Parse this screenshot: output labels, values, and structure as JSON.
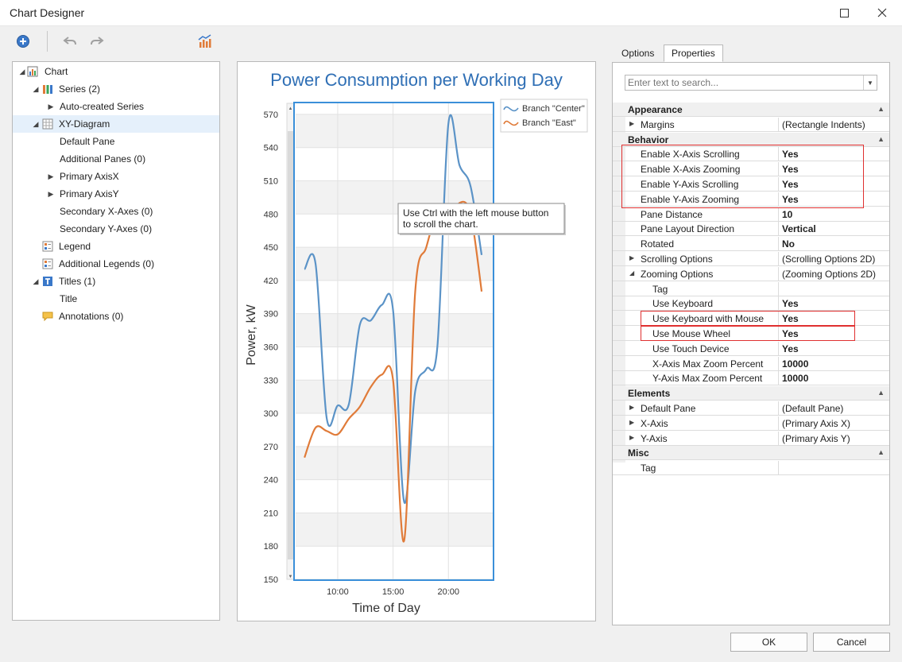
{
  "window": {
    "title": "Chart Designer",
    "minimize_icon": "minimize-icon",
    "maximize_icon": "maximize-icon",
    "close_icon": "close-icon"
  },
  "toolbar": {
    "add_icon": "add-icon",
    "undo_icon": "undo-icon",
    "redo_icon": "redo-icon",
    "wizard_icon": "chart-wizard-icon"
  },
  "tree": {
    "items": [
      {
        "label": "Chart",
        "level": 0,
        "expander": "down",
        "icon": "chart-icon"
      },
      {
        "label": "Series (2)",
        "level": 1,
        "expander": "down",
        "icon": "series-icon"
      },
      {
        "label": "Auto-created Series",
        "level": 2,
        "expander": "right",
        "icon": ""
      },
      {
        "label": "XY-Diagram",
        "level": 1,
        "expander": "down",
        "icon": "diagram-icon",
        "selected": true
      },
      {
        "label": "Default Pane",
        "level": 2,
        "expander": "",
        "icon": ""
      },
      {
        "label": "Additional Panes (0)",
        "level": 2,
        "expander": "",
        "icon": ""
      },
      {
        "label": "Primary AxisX",
        "level": 2,
        "expander": "right",
        "icon": ""
      },
      {
        "label": "Primary AxisY",
        "level": 2,
        "expander": "right",
        "icon": ""
      },
      {
        "label": "Secondary X-Axes (0)",
        "level": 2,
        "expander": "",
        "icon": ""
      },
      {
        "label": "Secondary Y-Axes (0)",
        "level": 2,
        "expander": "",
        "icon": ""
      },
      {
        "label": "Legend",
        "level": 1,
        "expander": "",
        "icon": "legend-icon"
      },
      {
        "label": "Additional Legends (0)",
        "level": 1,
        "expander": "",
        "icon": "legend-icon"
      },
      {
        "label": "Titles (1)",
        "level": 1,
        "expander": "down",
        "icon": "title-icon"
      },
      {
        "label": "Title",
        "level": 2,
        "expander": "",
        "icon": ""
      },
      {
        "label": "Annotations (0)",
        "level": 1,
        "expander": "",
        "icon": "annotation-icon"
      }
    ]
  },
  "chart_data": {
    "type": "line",
    "title": "Power Consumption per Working Day",
    "xlabel": "Time of Day",
    "ylabel": "Power, kW",
    "x_ticks": [
      "10:00",
      "15:00",
      "20:00"
    ],
    "y_ticks": [
      150,
      180,
      210,
      240,
      270,
      300,
      330,
      360,
      390,
      420,
      450,
      480,
      510,
      540,
      570
    ],
    "xlim": [
      6.2,
      24
    ],
    "ylim": [
      150,
      580
    ],
    "grid": true,
    "legend_position": "top-right",
    "tooltip": [
      "Use Ctrl with the left mouse button",
      "to scroll the chart."
    ],
    "series": [
      {
        "name": "Branch \"Center\"",
        "color": "#5b93c7",
        "x": [
          7,
          8,
          9,
          10,
          11,
          12,
          13,
          14,
          15,
          16,
          17,
          18,
          19,
          20,
          21,
          22,
          23
        ],
        "values": [
          430,
          435,
          296,
          307,
          308,
          380,
          384,
          398,
          393,
          220,
          320,
          340,
          360,
          562,
          524,
          505,
          443
        ]
      },
      {
        "name": "Branch \"East\"",
        "color": "#e07b39",
        "x": [
          7,
          8,
          9,
          10,
          11,
          12,
          13,
          14,
          15,
          16,
          17,
          18,
          19,
          20,
          21,
          22,
          23
        ],
        "values": [
          260,
          287,
          284,
          281,
          295,
          306,
          324,
          335,
          330,
          185,
          410,
          450,
          480,
          470,
          490,
          480,
          410
        ]
      }
    ]
  },
  "tabs": [
    {
      "label": "Options"
    },
    {
      "label": "Properties"
    }
  ],
  "search": {
    "placeholder": "Enter text to search..."
  },
  "properties": {
    "rows": [
      {
        "kind": "cat",
        "name": "Appearance"
      },
      {
        "kind": "prop",
        "name": "Margins",
        "value": "(Rectangle Indents)",
        "level": 1,
        "expander": "right",
        "bold": false
      },
      {
        "kind": "cat",
        "name": "Behavior"
      },
      {
        "kind": "prop",
        "name": "Enable X-Axis Scrolling",
        "value": "Yes",
        "level": 1,
        "bold": true
      },
      {
        "kind": "prop",
        "name": "Enable X-Axis Zooming",
        "value": "Yes",
        "level": 1,
        "bold": true
      },
      {
        "kind": "prop",
        "name": "Enable Y-Axis Scrolling",
        "value": "Yes",
        "level": 1,
        "bold": true
      },
      {
        "kind": "prop",
        "name": "Enable Y-Axis Zooming",
        "value": "Yes",
        "level": 1,
        "bold": true
      },
      {
        "kind": "prop",
        "name": "Pane Distance",
        "value": "10",
        "level": 1,
        "bold": true
      },
      {
        "kind": "prop",
        "name": "Pane Layout Direction",
        "value": "Vertical",
        "level": 1,
        "bold": true
      },
      {
        "kind": "prop",
        "name": "Rotated",
        "value": "No",
        "level": 1,
        "bold": true
      },
      {
        "kind": "prop",
        "name": "Scrolling Options",
        "value": "(Scrolling Options 2D)",
        "level": 1,
        "expander": "right",
        "bold": false
      },
      {
        "kind": "prop",
        "name": "Zooming Options",
        "value": "(Zooming Options 2D)",
        "level": 1,
        "expander": "down",
        "bold": false
      },
      {
        "kind": "prop",
        "name": "Tag",
        "value": "",
        "level": 2,
        "bold": false
      },
      {
        "kind": "prop",
        "name": "Use Keyboard",
        "value": "Yes",
        "level": 2,
        "bold": true
      },
      {
        "kind": "prop",
        "name": "Use Keyboard with Mouse",
        "value": "Yes",
        "level": 2,
        "bold": true
      },
      {
        "kind": "prop",
        "name": "Use Mouse Wheel",
        "value": "Yes",
        "level": 2,
        "bold": true
      },
      {
        "kind": "prop",
        "name": "Use Touch Device",
        "value": "Yes",
        "level": 2,
        "bold": true
      },
      {
        "kind": "prop",
        "name": "X-Axis Max Zoom Percent",
        "value": "10000",
        "level": 2,
        "bold": true
      },
      {
        "kind": "prop",
        "name": "Y-Axis Max Zoom Percent",
        "value": "10000",
        "level": 2,
        "bold": true
      },
      {
        "kind": "cat",
        "name": "Elements"
      },
      {
        "kind": "prop",
        "name": "Default Pane",
        "value": "(Default Pane)",
        "level": 1,
        "expander": "right",
        "bold": false
      },
      {
        "kind": "prop",
        "name": "X-Axis",
        "value": "(Primary Axis X)",
        "level": 1,
        "expander": "right",
        "bold": false
      },
      {
        "kind": "prop",
        "name": "Y-Axis",
        "value": "(Primary Axis Y)",
        "level": 1,
        "expander": "right",
        "bold": false
      },
      {
        "kind": "cat",
        "name": "Misc"
      },
      {
        "kind": "prop",
        "name": "Tag",
        "value": "",
        "level": 1,
        "bold": false
      }
    ]
  },
  "highlight_color": "#e03030",
  "buttons": {
    "ok": "OK",
    "cancel": "Cancel"
  }
}
